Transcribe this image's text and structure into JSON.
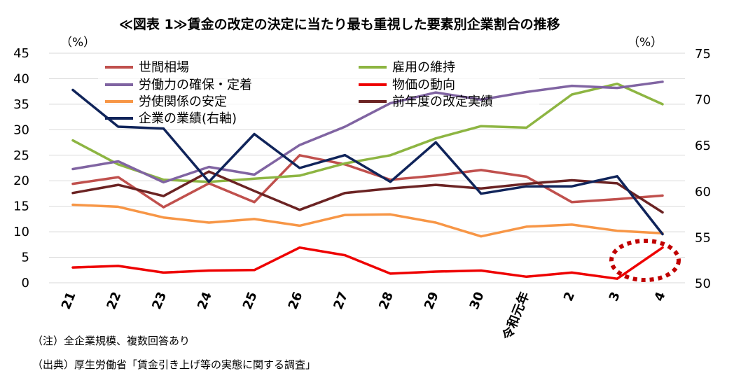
{
  "title": "≪図表 1≫賃金の改定の決定に当たり最も重視した要素別企業割合の推移",
  "left_unit": "（%）",
  "right_unit": "（%）",
  "notes": {
    "note1": "（注）全企業規模、複数回答あり",
    "note2": "（出典）厚生労働省「賃金引き上げ等の実態に関する調査」"
  },
  "chart_data": {
    "type": "line",
    "x": [
      "21",
      "22",
      "23",
      "24",
      "25",
      "26",
      "27",
      "28",
      "29",
      "30",
      "令和元年",
      "2",
      "3",
      "4"
    ],
    "y_left": {
      "min": 0,
      "max": 45,
      "ticks": [
        0,
        5,
        10,
        15,
        20,
        25,
        30,
        35,
        40,
        45
      ]
    },
    "y_right": {
      "min": 50,
      "max": 75,
      "ticks": [
        50,
        55,
        60,
        65,
        70,
        75
      ]
    },
    "grid": "horizontal",
    "legend_position": "top-left",
    "series": [
      {
        "name": "世間相場",
        "color": "#C0504D",
        "axis": "left",
        "values": [
          19.4,
          20.7,
          14.8,
          19.5,
          15.8,
          25.0,
          23.2,
          20.2,
          21.0,
          22.1,
          20.8,
          15.8,
          16.4,
          17.1
        ]
      },
      {
        "name": "雇用の維持",
        "color": "#8DB542",
        "axis": "left",
        "values": [
          27.9,
          23.2,
          20.2,
          19.8,
          20.4,
          21.0,
          23.4,
          25.0,
          28.3,
          30.7,
          30.4,
          36.9,
          39.0,
          35.0
        ]
      },
      {
        "name": "労働力の確保・定着",
        "color": "#8064A2",
        "axis": "left",
        "values": [
          22.3,
          23.8,
          19.7,
          22.7,
          21.2,
          27.0,
          30.6,
          35.2,
          37.3,
          35.9,
          37.4,
          38.6,
          38.2,
          39.4
        ]
      },
      {
        "name": "物価の動向",
        "color": "#EE0000",
        "axis": "left",
        "values": [
          3.0,
          3.3,
          2.0,
          2.4,
          2.5,
          6.9,
          5.4,
          1.8,
          2.2,
          2.4,
          1.2,
          2.0,
          0.8,
          6.9
        ]
      },
      {
        "name": "労使関係の安定",
        "color": "#F79646",
        "axis": "left",
        "values": [
          15.3,
          14.9,
          12.8,
          11.8,
          12.5,
          11.2,
          13.3,
          13.4,
          11.8,
          9.1,
          11.0,
          11.4,
          10.2,
          9.7
        ]
      },
      {
        "name": "前年度の改定実績",
        "color": "#6B2323",
        "axis": "left",
        "values": [
          17.6,
          19.2,
          17.0,
          21.8,
          18.0,
          14.3,
          17.6,
          18.5,
          19.2,
          18.5,
          19.4,
          20.1,
          19.5,
          13.8
        ]
      },
      {
        "name": "企業の業績(右軸)",
        "color": "#10245A",
        "axis": "right",
        "values": [
          71.0,
          67.0,
          66.8,
          61.0,
          66.2,
          62.5,
          63.9,
          61.0,
          65.3,
          59.7,
          60.5,
          60.5,
          61.6,
          55.3
        ]
      }
    ],
    "annotation": "dotted-ellipse around 物価の動向 at 3 – 4"
  },
  "legend": {
    "items": [
      {
        "label": "世間相場",
        "color": "#C0504D"
      },
      {
        "label": "雇用の維持",
        "color": "#8DB542"
      },
      {
        "label": "労働力の確保・定着",
        "color": "#8064A2"
      },
      {
        "label": "物価の動向",
        "color": "#EE0000"
      },
      {
        "label": "労使関係の安定",
        "color": "#F79646"
      },
      {
        "label": "前年度の改定実績",
        "color": "#6B2323"
      },
      {
        "label": "企業の業績(右軸)",
        "color": "#10245A"
      }
    ]
  }
}
